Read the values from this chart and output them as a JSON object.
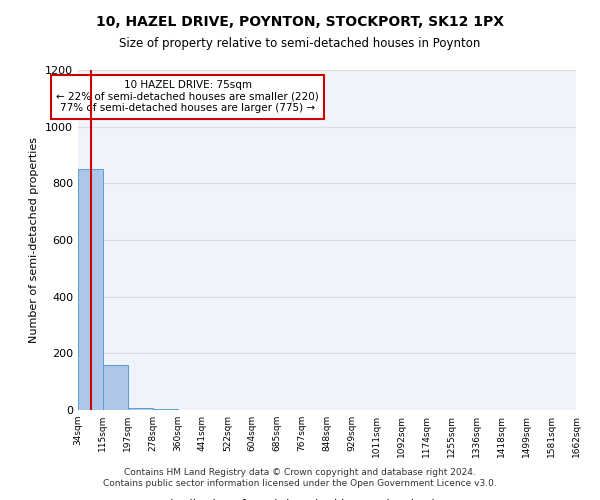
{
  "title": "10, HAZEL DRIVE, POYNTON, STOCKPORT, SK12 1PX",
  "subtitle": "Size of property relative to semi-detached houses in Poynton",
  "xlabel": "Distribution of semi-detached houses by size in Poynton",
  "ylabel": "Number of semi-detached properties",
  "footer_line1": "Contains HM Land Registry data © Crown copyright and database right 2024.",
  "footer_line2": "Contains public sector information licensed under the Open Government Licence v3.0.",
  "bin_labels": [
    "34sqm",
    "115sqm",
    "197sqm",
    "278sqm",
    "360sqm",
    "441sqm",
    "522sqm",
    "604sqm",
    "685sqm",
    "767sqm",
    "848sqm",
    "929sqm",
    "1011sqm",
    "1092sqm",
    "1174sqm",
    "1255sqm",
    "1336sqm",
    "1418sqm",
    "1499sqm",
    "1581sqm",
    "1662sqm"
  ],
  "bar_values": [
    850,
    160,
    8,
    2,
    1,
    0,
    0,
    0,
    0,
    0,
    0,
    0,
    0,
    0,
    0,
    0,
    0,
    0,
    0,
    0
  ],
  "bar_color": "#aec6e8",
  "bar_edge_color": "#5a9fd4",
  "marker_value": 75,
  "bin_edges": [
    34,
    115,
    197,
    278,
    360,
    441,
    522,
    604,
    685,
    767,
    848,
    929,
    1011,
    1092,
    1174,
    1255,
    1336,
    1418,
    1499,
    1581,
    1662
  ],
  "annotation_title": "10 HAZEL DRIVE: 75sqm",
  "annotation_line1": "← 22% of semi-detached houses are smaller (220)",
  "annotation_line2": "77% of semi-detached houses are larger (775) →",
  "annotation_box_color": "#ffffff",
  "annotation_border_color": "#cc0000",
  "marker_line_color": "#cc0000",
  "ylim": [
    0,
    1200
  ],
  "yticks": [
    0,
    200,
    400,
    600,
    800,
    1000,
    1200
  ],
  "grid_color": "#dddddd",
  "background_color": "#f0f4fa"
}
